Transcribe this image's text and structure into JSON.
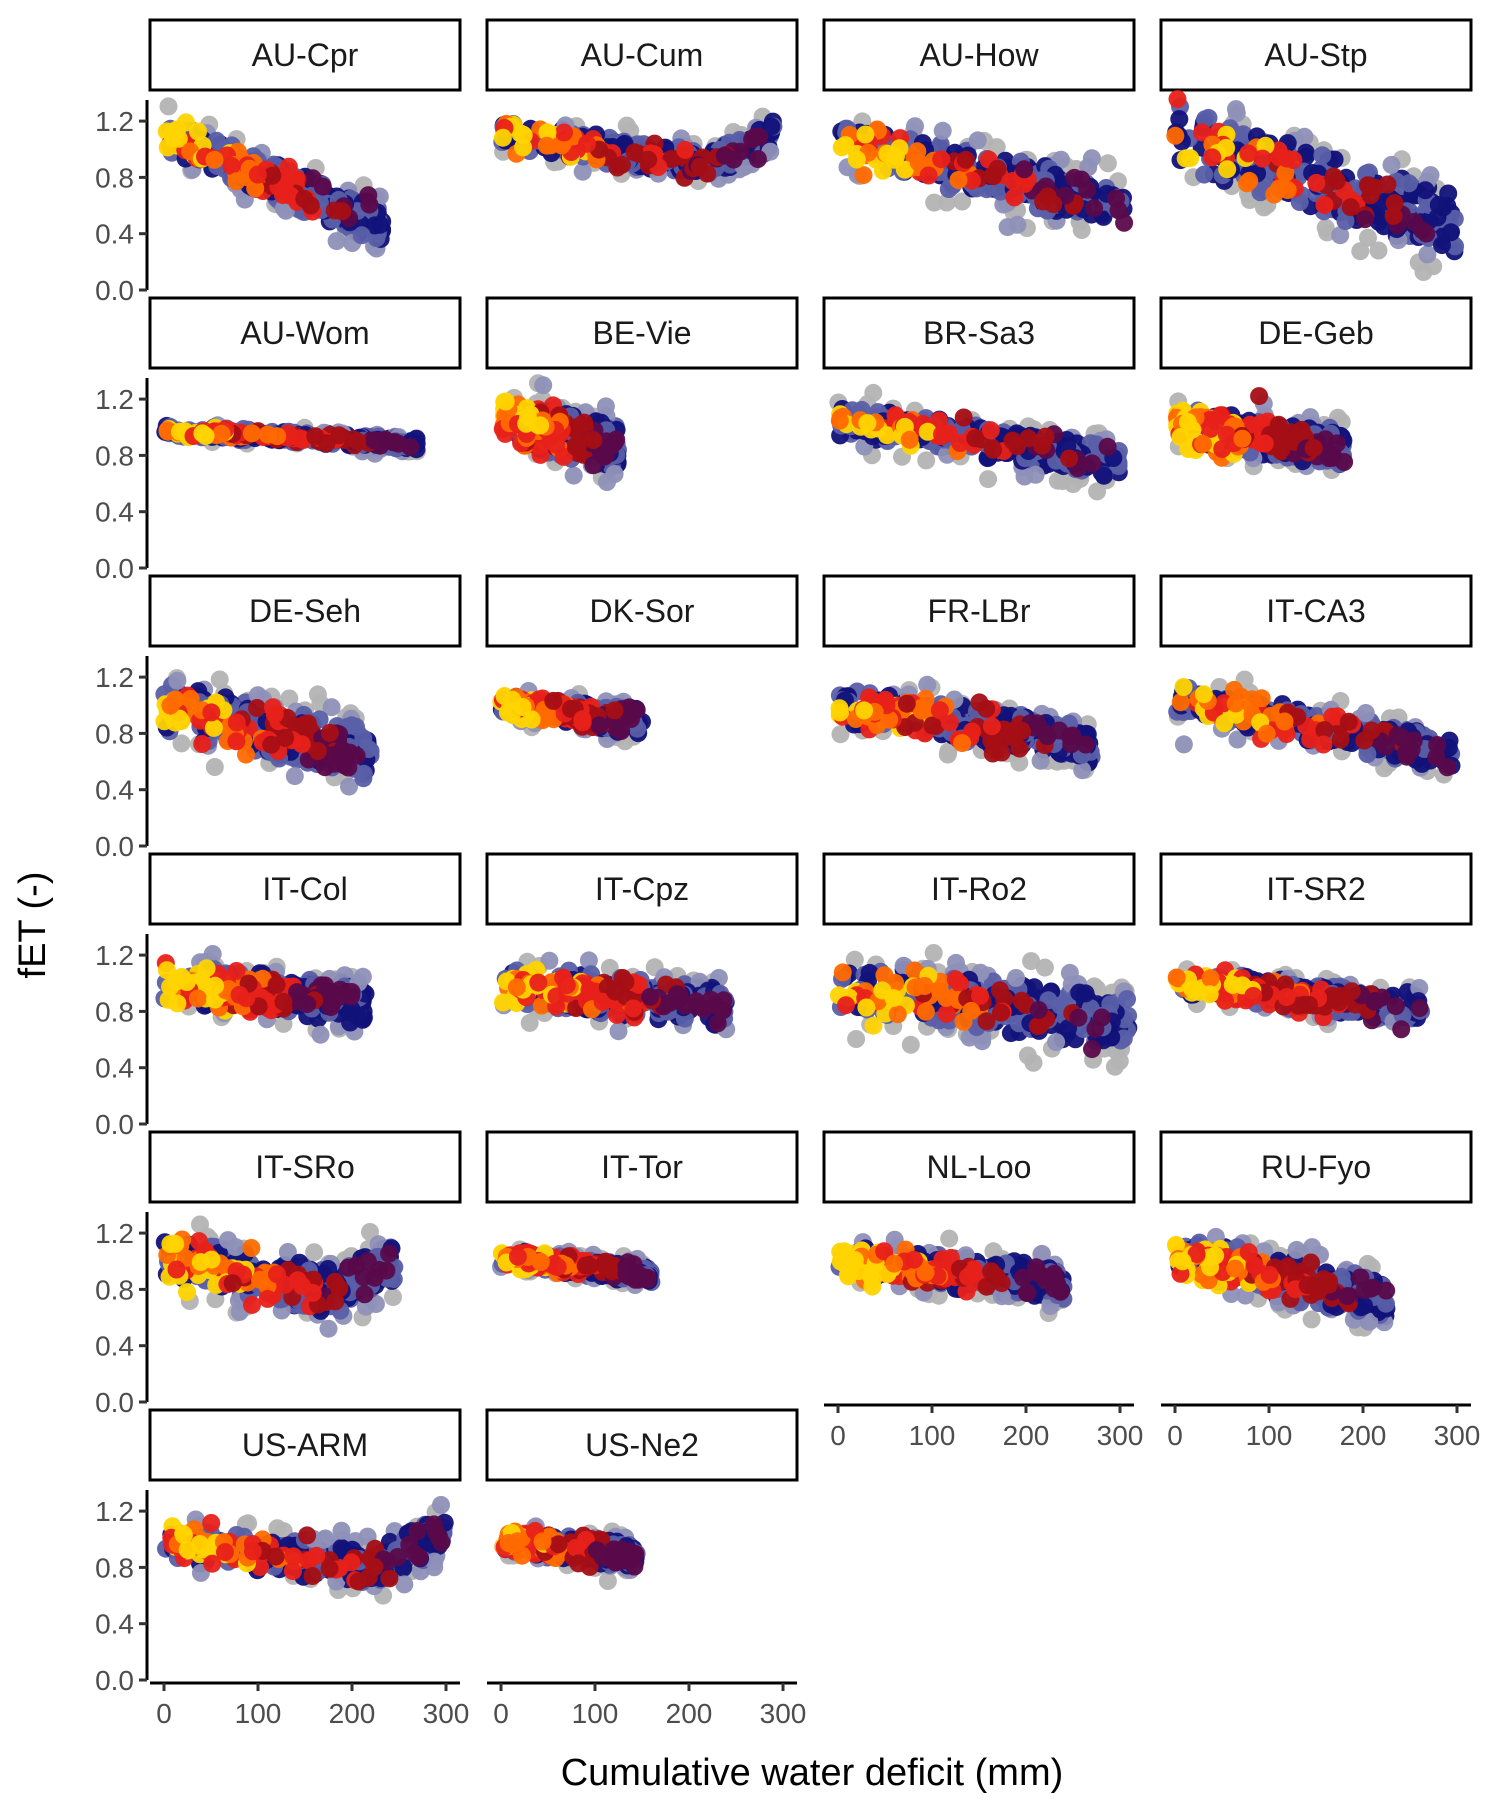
{
  "chart_data": {
    "type": "scatter",
    "facet_layout": "facet_wrap, 4 columns",
    "xlabel": "Cumulative water deficit (mm)",
    "ylabel": "fET (-)",
    "xlim": [
      0,
      300
    ],
    "ylim": [
      0,
      1.35
    ],
    "xticks": [
      0,
      100,
      200,
      300
    ],
    "yticks": [
      0.0,
      0.4,
      0.8,
      1.2
    ],
    "ytick_labels": [
      "0.0",
      "0.4",
      "0.8",
      "1.2"
    ],
    "grid": false,
    "legend": "none",
    "color_scale": [
      "#b3b3b3",
      "#8e90b8",
      "#5a5fa8",
      "#12127a",
      "#5a0a4a",
      "#a50f15",
      "#e8211a",
      "#ff6a00",
      "#ffd400"
    ],
    "panels": [
      {
        "label": "AU-Cpr",
        "xmax": 235,
        "start": 1.1,
        "end": 0.45,
        "spread": 0.18,
        "warm_frac": 0.45
      },
      {
        "label": "AU-Cum",
        "xmax": 290,
        "start": 1.12,
        "end": 0.8,
        "spread": 0.14,
        "warm_frac": 0.4,
        "tail_up": true
      },
      {
        "label": "AU-How",
        "xmax": 305,
        "start": 1.05,
        "end": 0.6,
        "spread": 0.22,
        "warm_frac": 0.35
      },
      {
        "label": "AU-Stp",
        "xmax": 300,
        "start": 1.1,
        "end": 0.45,
        "spread": 0.3,
        "warm_frac": 0.4
      },
      {
        "label": "AU-Wom",
        "xmax": 270,
        "start": 0.98,
        "end": 0.88,
        "spread": 0.05,
        "warm_frac": 0.55
      },
      {
        "label": "BE-Vie",
        "xmax": 125,
        "start": 1.05,
        "end": 0.85,
        "spread": 0.22,
        "warm_frac": 0.7
      },
      {
        "label": "BR-Sa3",
        "xmax": 300,
        "start": 1.05,
        "end": 0.75,
        "spread": 0.16,
        "warm_frac": 0.45
      },
      {
        "label": "DE-Geb",
        "xmax": 180,
        "start": 1.02,
        "end": 0.85,
        "spread": 0.18,
        "warm_frac": 0.75
      },
      {
        "label": "DE-Seh",
        "xmax": 220,
        "start": 0.98,
        "end": 0.65,
        "spread": 0.25,
        "warm_frac": 0.55
      },
      {
        "label": "DK-Sor",
        "xmax": 150,
        "start": 1.0,
        "end": 0.88,
        "spread": 0.12,
        "warm_frac": 0.8
      },
      {
        "label": "FR-LBr",
        "xmax": 270,
        "start": 1.0,
        "end": 0.72,
        "spread": 0.18,
        "warm_frac": 0.5
      },
      {
        "label": "IT-CA3",
        "xmax": 295,
        "start": 1.05,
        "end": 0.65,
        "spread": 0.16,
        "warm_frac": 0.4
      },
      {
        "label": "IT-Col",
        "xmax": 215,
        "start": 1.0,
        "end": 0.85,
        "spread": 0.2,
        "warm_frac": 0.6
      },
      {
        "label": "IT-Cpz",
        "xmax": 240,
        "start": 1.0,
        "end": 0.82,
        "spread": 0.2,
        "warm_frac": 0.55
      },
      {
        "label": "IT-Ro2",
        "xmax": 310,
        "start": 0.98,
        "end": 0.72,
        "spread": 0.25,
        "warm_frac": 0.45
      },
      {
        "label": "IT-SR2",
        "xmax": 265,
        "start": 1.0,
        "end": 0.82,
        "spread": 0.14,
        "warm_frac": 0.6
      },
      {
        "label": "IT-SRo",
        "xmax": 245,
        "start": 1.02,
        "end": 0.7,
        "spread": 0.22,
        "warm_frac": 0.5,
        "tail_up": true
      },
      {
        "label": "IT-Tor",
        "xmax": 160,
        "start": 1.03,
        "end": 0.9,
        "spread": 0.08,
        "warm_frac": 0.75
      },
      {
        "label": "NL-Loo",
        "xmax": 240,
        "start": 1.0,
        "end": 0.85,
        "spread": 0.16,
        "warm_frac": 0.6
      },
      {
        "label": "RU-Fyo",
        "xmax": 225,
        "start": 1.05,
        "end": 0.72,
        "spread": 0.2,
        "warm_frac": 0.55
      },
      {
        "label": "US-ARM",
        "xmax": 300,
        "start": 0.98,
        "end": 0.75,
        "spread": 0.18,
        "warm_frac": 0.5,
        "tail_up": true
      },
      {
        "label": "US-Ne2",
        "xmax": 145,
        "start": 1.0,
        "end": 0.88,
        "spread": 0.12,
        "warm_frac": 0.8
      }
    ]
  }
}
